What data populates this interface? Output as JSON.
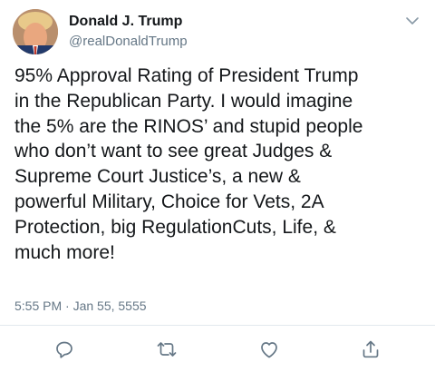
{
  "user": {
    "display_name": "Donald J. Trump",
    "handle": "@realDonaldTrump",
    "avatar_icon": "profile-photo"
  },
  "tweet": {
    "text": "95% Approval Rating of President Trump\nin the Republican Party. I would imagine\nthe 5% are the RINOS’ and stupid people\nwho don’t want to see great Judges &\nSupreme Court Justice’s, a new &\npowerful Military, Choice for Vets, 2A\nProtection, big RegulationCuts, Life, &\nmuch more!",
    "timestamp": "5:55 PM · Jan 55, 5555"
  },
  "actions": {
    "reply_icon": "reply-icon",
    "retweet_icon": "retweet-icon",
    "like_icon": "heart-icon",
    "share_icon": "share-icon"
  },
  "colors": {
    "text_primary": "#14171a",
    "text_secondary": "#657786",
    "icon": "#657786",
    "divider": "#e1e8ed"
  }
}
